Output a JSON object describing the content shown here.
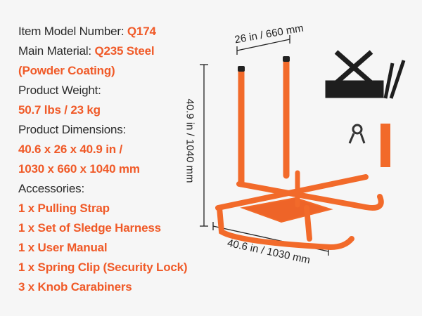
{
  "specs": {
    "model_label": "Item Model Number: ",
    "model_value": "Q174",
    "material_label": "Main Material: ",
    "material_value": "Q235 Steel",
    "material_value_2": "(Powder Coating)",
    "weight_label": "Product Weight:",
    "weight_value": "50.7 lbs / 23 kg",
    "dimensions_label": "Product Dimensions:",
    "dimensions_value_1": "40.6 x 26 x 40.9 in /",
    "dimensions_value_2": "1030 x 660 x 1040 mm",
    "accessories_label": "Accessories:",
    "accessories": [
      "1 x Pulling Strap",
      "1 x Set of Sledge Harness",
      "1 x User Manual",
      "1 x Spring Clip (Security Lock)",
      "3 x Knob Carabiners"
    ]
  },
  "dimensions": {
    "width": "26 in / 660 mm",
    "height": "40.9 in / 1040 mm",
    "length": "40.6 in / 1030 mm"
  },
  "colors": {
    "accent": "#f05a28",
    "product": "#f26a2a",
    "background": "#f6f6f6"
  }
}
